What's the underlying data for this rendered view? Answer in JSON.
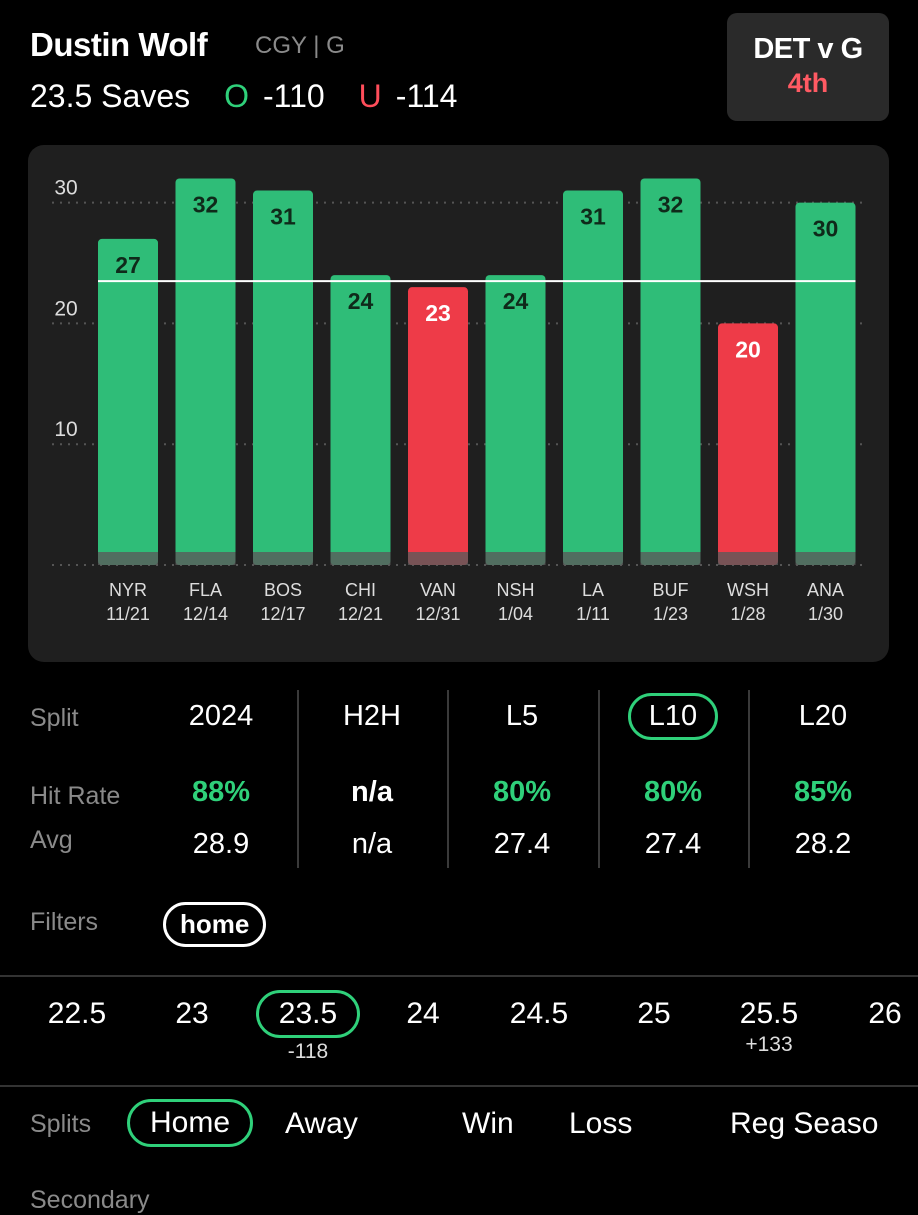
{
  "header": {
    "player_name": "Dustin Wolf",
    "player_meta": "CGY | G",
    "prop_line": "23.5 Saves",
    "over_letter": "O",
    "over_odds": "-110",
    "under_letter": "U",
    "under_odds": "-114"
  },
  "game_card": {
    "matchup": "DET v G",
    "period": "4th"
  },
  "colors": {
    "over": "#2fbd78",
    "under": "#ee3b48",
    "accent": "#2fd07a",
    "panel": "#1f1f1f"
  },
  "chart_data": {
    "type": "bar",
    "title": "",
    "xlabel": "",
    "ylabel": "",
    "ylim": [
      0,
      34
    ],
    "yticks": [
      10,
      20,
      30
    ],
    "line": 23.5,
    "grid": true,
    "categories": [
      "NYR",
      "FLA",
      "BOS",
      "CHI",
      "VAN",
      "NSH",
      "LA",
      "BUF",
      "WSH",
      "ANA"
    ],
    "dates": [
      "11/21",
      "12/14",
      "12/17",
      "12/21",
      "12/31",
      "1/04",
      "1/11",
      "1/23",
      "1/28",
      "1/30"
    ],
    "values": [
      27,
      32,
      31,
      24,
      23,
      24,
      31,
      32,
      20,
      30
    ],
    "labels": [
      "27",
      "32",
      "31",
      "24",
      "23",
      "24",
      "31",
      "32",
      "20",
      "30"
    ],
    "result": [
      "over",
      "over",
      "over",
      "over",
      "under",
      "over",
      "over",
      "over",
      "under",
      "over"
    ]
  },
  "stats": {
    "row_labels": {
      "split": "Split",
      "hit_rate": "Hit Rate",
      "avg": "Avg"
    },
    "columns": [
      {
        "head": "2024",
        "hit": "88%",
        "avg": "28.9"
      },
      {
        "head": "H2H",
        "hit": "n/a",
        "avg": "n/a"
      },
      {
        "head": "L5",
        "hit": "80%",
        "avg": "27.4"
      },
      {
        "head": "L10",
        "hit": "80%",
        "avg": "27.4"
      },
      {
        "head": "L20",
        "hit": "85%",
        "avg": "28.2"
      }
    ],
    "selected": "L10"
  },
  "filters": {
    "label": "Filters",
    "chip": "home"
  },
  "line_selector": {
    "options": [
      {
        "value": "22.5",
        "odds": ""
      },
      {
        "value": "23",
        "odds": ""
      },
      {
        "value": "23.5",
        "odds": "-118"
      },
      {
        "value": "24",
        "odds": ""
      },
      {
        "value": "24.5",
        "odds": ""
      },
      {
        "value": "25",
        "odds": ""
      },
      {
        "value": "25.5",
        "odds": "+133"
      },
      {
        "value": "26",
        "odds": ""
      }
    ],
    "selected": "23.5"
  },
  "splits": {
    "label": "Splits",
    "options": [
      "Home",
      "Away",
      "Win",
      "Loss",
      "Reg Seaso"
    ],
    "selected": "Home"
  },
  "secondary": {
    "label": "Secondary"
  }
}
